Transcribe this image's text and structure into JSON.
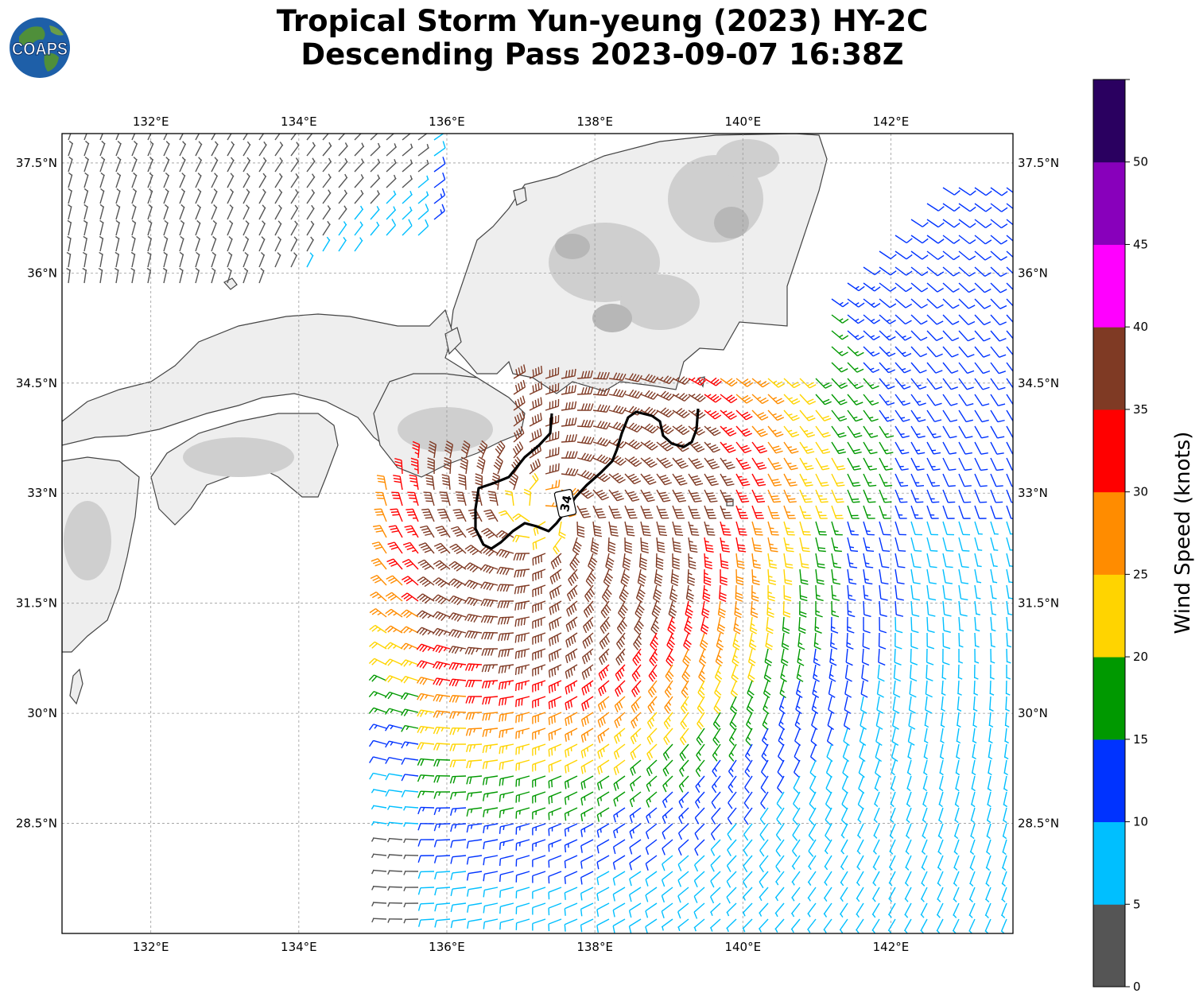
{
  "title": {
    "line1": "Tropical Storm Yun-yeung (2023) HY-2C",
    "line2": "Descending Pass 2023-09-07 16:38Z"
  },
  "logo": {
    "text": "COAPS"
  },
  "map": {
    "lon_range": [
      130.8,
      143.65
    ],
    "lat_range": [
      27.0,
      37.9
    ],
    "lon_ticks": [
      "132°E",
      "134°E",
      "136°E",
      "138°E",
      "140°E",
      "142°E"
    ],
    "lat_ticks": [
      "37.5°N",
      "36°N",
      "34.5°N",
      "33°N",
      "31.5°N",
      "30°N",
      "28.5°N"
    ],
    "grid": true,
    "storm_center": {
      "lon": 137.3,
      "lat": 32.75
    },
    "contour_label": "34"
  },
  "colorbar": {
    "label": "Wind Speed (knots)",
    "ticks": [
      "0",
      "5",
      "10",
      "15",
      "20",
      "25",
      "30",
      "35",
      "40",
      "45",
      "50"
    ],
    "colors": [
      "#555555",
      "#00bfff",
      "#0033ff",
      "#009900",
      "#ffd400",
      "#ff8c00",
      "#ff0000",
      "#7f3a24",
      "#ff00ff",
      "#8800bb",
      "#2a0060"
    ]
  }
}
